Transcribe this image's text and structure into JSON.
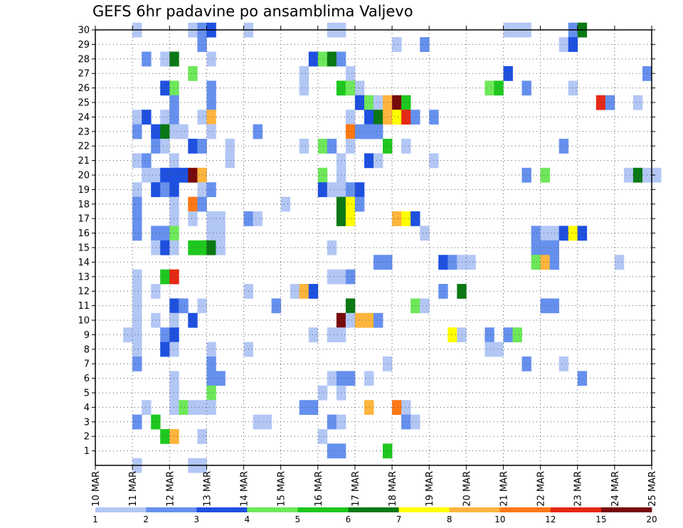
{
  "chart_data": {
    "type": "heatmap",
    "title": "GEFS 6hr padavine po ansamblima Valjevo",
    "xlabel": "",
    "ylabel": "",
    "x_ticks": [
      "10 MAR",
      "11 MAR",
      "12 MAR",
      "13 MAR",
      "14 MAR",
      "15 MAR",
      "16 MAR",
      "17 MAR",
      "18 MAR",
      "19 MAR",
      "20 MAR",
      "21 MAR",
      "22 MAR",
      "23 MAR",
      "24 MAR",
      "25 MAR"
    ],
    "y_ticks": [
      1,
      2,
      3,
      4,
      5,
      6,
      7,
      8,
      9,
      10,
      11,
      12,
      13,
      14,
      15,
      16,
      17,
      18,
      19,
      20,
      21,
      22,
      23,
      24,
      25,
      26,
      27,
      28,
      29,
      30
    ],
    "xlim_days": [
      0,
      15
    ],
    "ylim_members": [
      0,
      30
    ],
    "grid": "dotted",
    "legend_position": "bottom",
    "color_scale": {
      "labels": [
        "1",
        "2",
        "3",
        "4",
        "5",
        "6",
        "7",
        "8",
        "10",
        "12",
        "15",
        "20"
      ],
      "colors": [
        "#b3c7f5",
        "#6690ee",
        "#1e50e0",
        "#6ee85a",
        "#1ec81e",
        "#0a7814",
        "#ffff00",
        "#ffb43c",
        "#ff7814",
        "#e62814",
        "#780a0a"
      ]
    },
    "cells": [
      [
        1,
        30,
        1
      ],
      [
        2.5,
        30,
        1
      ],
      [
        2.75,
        30,
        2
      ],
      [
        3,
        30,
        3
      ],
      [
        4,
        30,
        1
      ],
      [
        6.25,
        30,
        1
      ],
      [
        6.5,
        30,
        1
      ],
      [
        11,
        30,
        1
      ],
      [
        11.25,
        30,
        1
      ],
      [
        11.5,
        30,
        1
      ],
      [
        12.75,
        30,
        2
      ],
      [
        13,
        30,
        6
      ],
      [
        2.75,
        29,
        2
      ],
      [
        8,
        29,
        1
      ],
      [
        8.75,
        29,
        2
      ],
      [
        12.5,
        29,
        1
      ],
      [
        12.75,
        29,
        3
      ],
      [
        1.25,
        28,
        2
      ],
      [
        1.75,
        28,
        1
      ],
      [
        2,
        28,
        6
      ],
      [
        3,
        28,
        1
      ],
      [
        5.75,
        28,
        3
      ],
      [
        6,
        28,
        4
      ],
      [
        6.25,
        28,
        6
      ],
      [
        6.5,
        28,
        2
      ],
      [
        2.5,
        27,
        4
      ],
      [
        5.5,
        27,
        1
      ],
      [
        6.75,
        27,
        1
      ],
      [
        11,
        27,
        3
      ],
      [
        14.75,
        27,
        2
      ],
      [
        1.75,
        26,
        3
      ],
      [
        2,
        26,
        4
      ],
      [
        3,
        26,
        2
      ],
      [
        5.5,
        26,
        1
      ],
      [
        6.5,
        26,
        5
      ],
      [
        6.75,
        26,
        4
      ],
      [
        7,
        26,
        1
      ],
      [
        10.5,
        26,
        4
      ],
      [
        10.75,
        26,
        5
      ],
      [
        11.5,
        26,
        2
      ],
      [
        12.75,
        26,
        1
      ],
      [
        2,
        25,
        2
      ],
      [
        3,
        25,
        2
      ],
      [
        7,
        25,
        3
      ],
      [
        7.25,
        25,
        4
      ],
      [
        7.5,
        25,
        1
      ],
      [
        7.75,
        25,
        8
      ],
      [
        8,
        25,
        11
      ],
      [
        8.25,
        25,
        5
      ],
      [
        13.5,
        25,
        10
      ],
      [
        13.75,
        25,
        2
      ],
      [
        14.5,
        25,
        1
      ],
      [
        1,
        24,
        1
      ],
      [
        1.25,
        24,
        3
      ],
      [
        1.75,
        24,
        1
      ],
      [
        2,
        24,
        2
      ],
      [
        2.75,
        24,
        1
      ],
      [
        3,
        24,
        8
      ],
      [
        6.75,
        24,
        1
      ],
      [
        7.25,
        24,
        3
      ],
      [
        7.5,
        24,
        6
      ],
      [
        7.75,
        24,
        8
      ],
      [
        8,
        24,
        7
      ],
      [
        8.25,
        24,
        10
      ],
      [
        8.5,
        24,
        2
      ],
      [
        9,
        24,
        2
      ],
      [
        1,
        23,
        2
      ],
      [
        1.5,
        23,
        3
      ],
      [
        1.75,
        23,
        6
      ],
      [
        2,
        23,
        1
      ],
      [
        2.25,
        23,
        1
      ],
      [
        3,
        23,
        1
      ],
      [
        4.25,
        23,
        2
      ],
      [
        6.75,
        23,
        9
      ],
      [
        7,
        23,
        2
      ],
      [
        7.25,
        23,
        2
      ],
      [
        7.5,
        23,
        2
      ],
      [
        1.5,
        22,
        2
      ],
      [
        1.75,
        22,
        1
      ],
      [
        2.5,
        22,
        3
      ],
      [
        2.75,
        22,
        2
      ],
      [
        3.5,
        22,
        1
      ],
      [
        5.5,
        22,
        1
      ],
      [
        6,
        22,
        4
      ],
      [
        6.25,
        22,
        2
      ],
      [
        6.75,
        22,
        1
      ],
      [
        7.75,
        22,
        5
      ],
      [
        8.25,
        22,
        1
      ],
      [
        12.5,
        22,
        2
      ],
      [
        1,
        21,
        1
      ],
      [
        1.25,
        21,
        2
      ],
      [
        2,
        21,
        1
      ],
      [
        3.5,
        21,
        1
      ],
      [
        6.5,
        21,
        1
      ],
      [
        7.25,
        21,
        3
      ],
      [
        7.5,
        21,
        1
      ],
      [
        9,
        21,
        1
      ],
      [
        1.25,
        20,
        1
      ],
      [
        1.5,
        20,
        1
      ],
      [
        1.75,
        20,
        3
      ],
      [
        2,
        20,
        3
      ],
      [
        2.25,
        20,
        3
      ],
      [
        2.5,
        20,
        11
      ],
      [
        2.75,
        20,
        8
      ],
      [
        6,
        20,
        4
      ],
      [
        6.5,
        20,
        1
      ],
      [
        11.5,
        20,
        2
      ],
      [
        12,
        20,
        4
      ],
      [
        14.25,
        20,
        1
      ],
      [
        14.5,
        20,
        6
      ],
      [
        14.75,
        20,
        1
      ],
      [
        15,
        20,
        1
      ],
      [
        1,
        19,
        1
      ],
      [
        1.5,
        19,
        3
      ],
      [
        1.75,
        19,
        2
      ],
      [
        2,
        19,
        3
      ],
      [
        2.75,
        19,
        1
      ],
      [
        3,
        19,
        2
      ],
      [
        6,
        19,
        3
      ],
      [
        6.25,
        19,
        1
      ],
      [
        6.5,
        19,
        1
      ],
      [
        6.75,
        19,
        2
      ],
      [
        7,
        19,
        3
      ],
      [
        1,
        18,
        2
      ],
      [
        2,
        18,
        1
      ],
      [
        2.5,
        18,
        9
      ],
      [
        2.75,
        18,
        2
      ],
      [
        5,
        18,
        1
      ],
      [
        6.5,
        18,
        6
      ],
      [
        6.75,
        18,
        7
      ],
      [
        7,
        18,
        2
      ],
      [
        1,
        17,
        2
      ],
      [
        2,
        17,
        1
      ],
      [
        2.5,
        17,
        1
      ],
      [
        3,
        17,
        1
      ],
      [
        3.25,
        17,
        1
      ],
      [
        4,
        17,
        2
      ],
      [
        4.25,
        17,
        1
      ],
      [
        6.5,
        17,
        6
      ],
      [
        6.75,
        17,
        7
      ],
      [
        8,
        17,
        8
      ],
      [
        8.25,
        17,
        7
      ],
      [
        8.5,
        17,
        3
      ],
      [
        1,
        16,
        2
      ],
      [
        1.5,
        16,
        2
      ],
      [
        1.75,
        16,
        2
      ],
      [
        2,
        16,
        4
      ],
      [
        3,
        16,
        1
      ],
      [
        3.25,
        16,
        1
      ],
      [
        8.75,
        16,
        1
      ],
      [
        11.75,
        16,
        2
      ],
      [
        12,
        16,
        1
      ],
      [
        12.25,
        16,
        1
      ],
      [
        12.5,
        16,
        3
      ],
      [
        12.75,
        16,
        7
      ],
      [
        13,
        16,
        3
      ],
      [
        1.5,
        15,
        1
      ],
      [
        1.75,
        15,
        3
      ],
      [
        2,
        15,
        1
      ],
      [
        2.5,
        15,
        5
      ],
      [
        2.75,
        15,
        5
      ],
      [
        3,
        15,
        6
      ],
      [
        3.25,
        15,
        1
      ],
      [
        6.25,
        15,
        1
      ],
      [
        11.75,
        15,
        2
      ],
      [
        12,
        15,
        2
      ],
      [
        12.25,
        15,
        2
      ],
      [
        7.5,
        14,
        2
      ],
      [
        7.75,
        14,
        2
      ],
      [
        9.25,
        14,
        3
      ],
      [
        9.5,
        14,
        2
      ],
      [
        9.75,
        14,
        1
      ],
      [
        10,
        14,
        1
      ],
      [
        11.75,
        14,
        4
      ],
      [
        12,
        14,
        8
      ],
      [
        12.25,
        14,
        2
      ],
      [
        14,
        14,
        1
      ],
      [
        1,
        13,
        1
      ],
      [
        1.75,
        13,
        5
      ],
      [
        2,
        13,
        10
      ],
      [
        6.25,
        13,
        1
      ],
      [
        6.5,
        13,
        1
      ],
      [
        6.75,
        13,
        2
      ],
      [
        1,
        12,
        1
      ],
      [
        1.5,
        12,
        1
      ],
      [
        4,
        12,
        1
      ],
      [
        5.25,
        12,
        1
      ],
      [
        5.5,
        12,
        8
      ],
      [
        5.75,
        12,
        3
      ],
      [
        9.25,
        12,
        2
      ],
      [
        9.75,
        12,
        6
      ],
      [
        1,
        11,
        1
      ],
      [
        2,
        11,
        3
      ],
      [
        2.25,
        11,
        2
      ],
      [
        2.75,
        11,
        1
      ],
      [
        4.75,
        11,
        2
      ],
      [
        6.75,
        11,
        6
      ],
      [
        8.5,
        11,
        4
      ],
      [
        8.75,
        11,
        1
      ],
      [
        12,
        11,
        2
      ],
      [
        12.25,
        11,
        2
      ],
      [
        1,
        10,
        1
      ],
      [
        1.5,
        10,
        1
      ],
      [
        2,
        10,
        1
      ],
      [
        2.5,
        10,
        3
      ],
      [
        6.5,
        10,
        11
      ],
      [
        6.75,
        10,
        1
      ],
      [
        7,
        10,
        8
      ],
      [
        7.25,
        10,
        8
      ],
      [
        7.5,
        10,
        2
      ],
      [
        0.75,
        9,
        1
      ],
      [
        1,
        9,
        1
      ],
      [
        1.75,
        9,
        2
      ],
      [
        2,
        9,
        3
      ],
      [
        5.75,
        9,
        1
      ],
      [
        6.25,
        9,
        1
      ],
      [
        6.5,
        9,
        1
      ],
      [
        9.5,
        9,
        7
      ],
      [
        9.75,
        9,
        1
      ],
      [
        10.5,
        9,
        2
      ],
      [
        11,
        9,
        2
      ],
      [
        11.25,
        9,
        4
      ],
      [
        1,
        8,
        1
      ],
      [
        1.75,
        8,
        3
      ],
      [
        2,
        8,
        1
      ],
      [
        3,
        8,
        1
      ],
      [
        4,
        8,
        1
      ],
      [
        10.5,
        8,
        1
      ],
      [
        10.75,
        8,
        1
      ],
      [
        1,
        7,
        2
      ],
      [
        3,
        7,
        2
      ],
      [
        7.75,
        7,
        1
      ],
      [
        11.5,
        7,
        2
      ],
      [
        12.5,
        7,
        1
      ],
      [
        2,
        6,
        1
      ],
      [
        3,
        6,
        2
      ],
      [
        3.25,
        6,
        2
      ],
      [
        6.25,
        6,
        1
      ],
      [
        6.5,
        6,
        2
      ],
      [
        6.75,
        6,
        2
      ],
      [
        7.25,
        6,
        1
      ],
      [
        13,
        6,
        2
      ],
      [
        2,
        5,
        1
      ],
      [
        3,
        5,
        4
      ],
      [
        6,
        5,
        1
      ],
      [
        6.5,
        5,
        1
      ],
      [
        1.25,
        4,
        1
      ],
      [
        2,
        4,
        1
      ],
      [
        2.25,
        4,
        4
      ],
      [
        2.5,
        4,
        1
      ],
      [
        2.75,
        4,
        1
      ],
      [
        3,
        4,
        1
      ],
      [
        5.5,
        4,
        2
      ],
      [
        5.75,
        4,
        2
      ],
      [
        7.25,
        4,
        8
      ],
      [
        8,
        4,
        9
      ],
      [
        8.25,
        4,
        1
      ],
      [
        1,
        3,
        2
      ],
      [
        1.5,
        3,
        5
      ],
      [
        4.25,
        3,
        1
      ],
      [
        4.5,
        3,
        1
      ],
      [
        6.25,
        3,
        2
      ],
      [
        6.5,
        3,
        1
      ],
      [
        8.25,
        3,
        2
      ],
      [
        8.5,
        3,
        1
      ],
      [
        1.75,
        2,
        5
      ],
      [
        2,
        2,
        8
      ],
      [
        2.75,
        2,
        1
      ],
      [
        6,
        2,
        1
      ],
      [
        6.25,
        1,
        2
      ],
      [
        6.5,
        1,
        2
      ],
      [
        7.75,
        1,
        5
      ],
      [
        1,
        0,
        1
      ],
      [
        2.5,
        0,
        1
      ],
      [
        2.75,
        0,
        1
      ]
    ]
  }
}
